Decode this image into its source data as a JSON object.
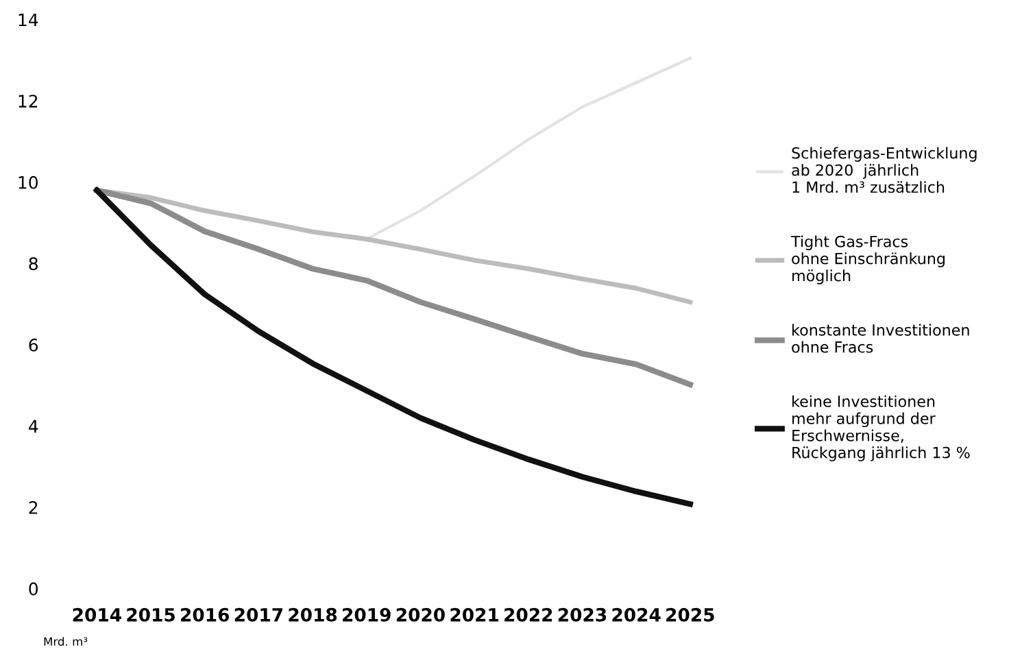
{
  "chart_data": {
    "type": "line",
    "ylabel": "Mrd. m³",
    "categories": [
      "2014",
      "2015",
      "2016",
      "2017",
      "2018",
      "2019",
      "2020",
      "2021",
      "2022",
      "2023",
      "2024",
      "2025"
    ],
    "series": [
      {
        "name": "Schiefergas-Entwicklung\nab 2020  jährlich\n1 Mrd. m³ zusätzlich",
        "color": "#e2e2e2",
        "values": [
          null,
          null,
          null,
          null,
          null,
          8.6,
          9.3,
          10.15,
          11.05,
          11.85,
          12.45,
          13.05
        ]
      },
      {
        "name": "Tight Gas-Fracs\nohne Einschränkung\nmöglich",
        "color": "#bcbcbc",
        "values": [
          9.8,
          9.62,
          9.3,
          9.05,
          8.78,
          8.6,
          8.35,
          8.08,
          7.87,
          7.62,
          7.39,
          7.05
        ]
      },
      {
        "name": "konstante Investitionen\nohne Fracs",
        "color": "#8c8c8c",
        "values": [
          9.8,
          9.48,
          8.79,
          8.35,
          7.87,
          7.58,
          7.05,
          6.63,
          6.2,
          5.78,
          5.52,
          5.02
        ]
      },
      {
        "name": "keine Investitionen\nmehr aufgrund der\nErschwernisse,\nRückgang jährlich 13 %",
        "color": "#111111",
        "values": [
          9.8,
          8.45,
          7.24,
          6.33,
          5.54,
          4.87,
          4.2,
          3.66,
          3.18,
          2.75,
          2.39,
          2.08
        ]
      }
    ],
    "ylim": [
      0,
      14
    ],
    "yticks": [
      0,
      2,
      4,
      6,
      8,
      10,
      12,
      14
    ],
    "legend": "right",
    "grid": false,
    "marker": "none",
    "line_style": "solid"
  }
}
